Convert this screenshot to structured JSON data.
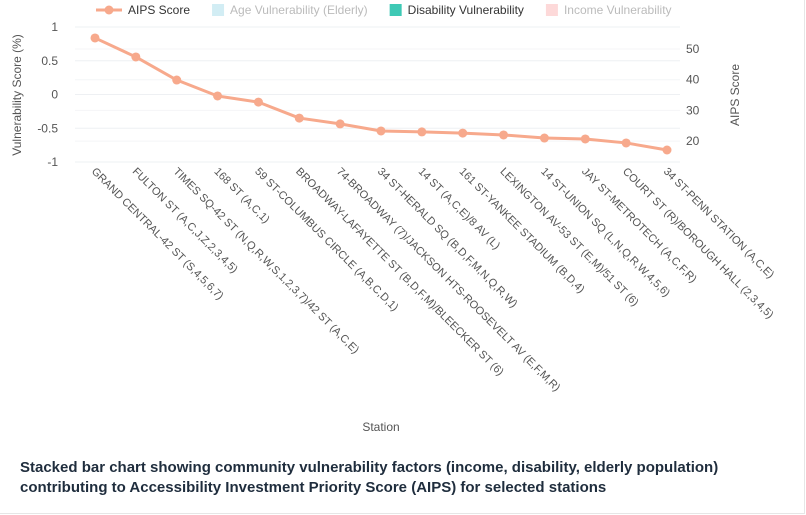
{
  "chart_data": {
    "type": "bar+line",
    "xlabel": "Station",
    "ylabel": "Vulnerability Score (%)",
    "y2label": "AIPS Score",
    "ylim": [
      -1,
      1
    ],
    "y2lim": [
      15,
      55
    ],
    "yticks": [
      "1",
      "0.5",
      "0",
      "-0.5",
      "-1"
    ],
    "y2ticks": [
      "50",
      "40",
      "30",
      "20"
    ],
    "grid": true,
    "legend_position": "top",
    "legend": [
      {
        "name": "AIPS Score",
        "color": "#f7a98c",
        "visible": true,
        "kind": "line"
      },
      {
        "name": "Age Vulnerability (Elderly)",
        "color": "#a6dbea",
        "visible": false,
        "kind": "bar"
      },
      {
        "name": "Disability Vulnerability",
        "color": "#3ec9b5",
        "visible": true,
        "kind": "bar"
      },
      {
        "name": "Income Vulnerability",
        "color": "#fbb4b4",
        "visible": false,
        "kind": "bar"
      }
    ],
    "categories": [
      "GRAND CENTRAL-42 ST (S,4,5,6,7)",
      "FULTON ST (A,C,J,Z,2,3,4,5)",
      "TIMES SQ-42 ST (N,Q,R,W,S,1,2,3,7)/42 ST (A,C,E)",
      "168 ST (A,C,1)",
      "59 ST-COLUMBUS CIRCLE (A,B,C,D,1)",
      "BROADWAY-LAFAYETTE ST (B,D,F,M)/BLEECKER ST (6)",
      "74-BROADWAY (7)/JACKSON HTS-ROOSEVELT AV (E,F,M,R)",
      "34 ST-HERALD SQ (B,D,F,M,N,Q,R,W)",
      "14 ST (A,C,E)/8 AV (L)",
      "161 ST-YANKEE STADIUM (B,D,4)",
      "LEXINGTON AV-53 ST (E,M)/51 ST (6)",
      "14 ST-UNION SQ (L,N,Q,R,W,4,5,6)",
      "JAY ST-METROTECH (A,C,F,R)",
      "COURT ST (R)/BOROUGH HALL (2,3,4,5)",
      "34 ST-PENN STATION (A,C,E)"
    ],
    "series": [
      {
        "name": "AIPS Score",
        "axis": "right",
        "values": [
          53.6,
          47.4,
          39.9,
          34.7,
          32.7,
          27.5,
          25.6,
          23.3,
          23.0,
          22.6,
          22.0,
          21.0,
          20.7,
          19.4,
          17.1
        ]
      }
    ]
  },
  "caption": "Stacked bar chart showing community vulnerability factors (income, disability, elderly population) contributing to Accessibility Investment Priority Score (AIPS) for selected stations"
}
